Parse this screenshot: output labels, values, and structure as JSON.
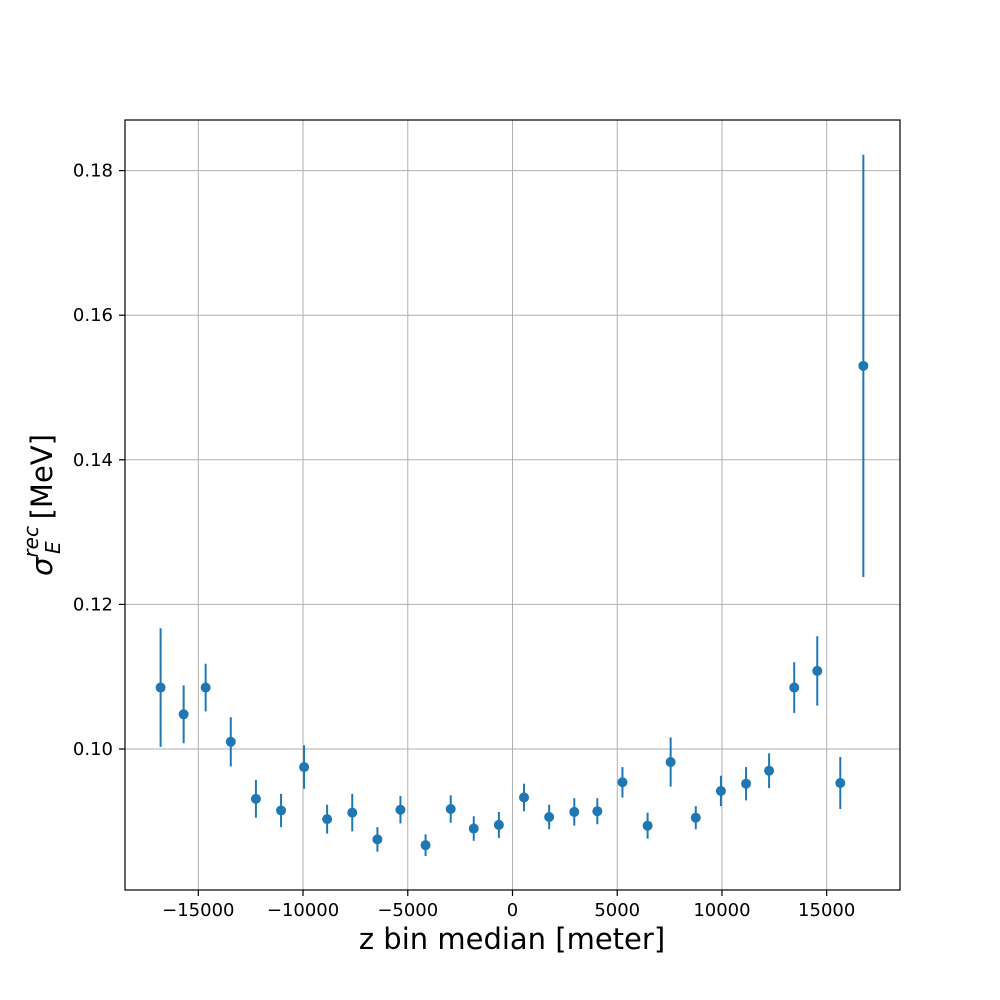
{
  "chart_data": {
    "type": "scatter",
    "title": "",
    "xlabel": "z bin median [meter]",
    "ylabel": {
      "symbol": "σ",
      "subscript": "E",
      "superscript": "rec",
      "unit": "[MeV]"
    },
    "xlim": [
      -18500,
      18500
    ],
    "ylim": [
      0.0805,
      0.187
    ],
    "xticks": [
      -15000,
      -10000,
      -5000,
      0,
      5000,
      10000,
      15000
    ],
    "xtick_labels": [
      "−15000",
      "−10000",
      "−5000",
      "0",
      "5000",
      "10000",
      "15000"
    ],
    "yticks": [
      0.1,
      0.12,
      0.14,
      0.16,
      0.18
    ],
    "ytick_labels": [
      "0.10",
      "0.12",
      "0.14",
      "0.16",
      "0.18"
    ],
    "grid": true,
    "series": [
      {
        "color": "#1f77b4",
        "marker": "circle",
        "points": [
          {
            "x": -16800,
            "y": 0.1085,
            "err": 0.0082
          },
          {
            "x": -15700,
            "y": 0.1048,
            "err": 0.004
          },
          {
            "x": -14650,
            "y": 0.1085,
            "err": 0.0033
          },
          {
            "x": -13450,
            "y": 0.101,
            "err": 0.0034
          },
          {
            "x": -12250,
            "y": 0.0931,
            "err": 0.0026
          },
          {
            "x": -11050,
            "y": 0.0915,
            "err": 0.0023
          },
          {
            "x": -9950,
            "y": 0.0975,
            "err": 0.003
          },
          {
            "x": -8850,
            "y": 0.0903,
            "err": 0.002
          },
          {
            "x": -7650,
            "y": 0.0912,
            "err": 0.0026
          },
          {
            "x": -6450,
            "y": 0.0875,
            "err": 0.0017
          },
          {
            "x": -5350,
            "y": 0.0916,
            "err": 0.0019
          },
          {
            "x": -4150,
            "y": 0.0867,
            "err": 0.0015
          },
          {
            "x": -2950,
            "y": 0.0917,
            "err": 0.0019
          },
          {
            "x": -1850,
            "y": 0.089,
            "err": 0.0017
          },
          {
            "x": -650,
            "y": 0.0895,
            "err": 0.0018
          },
          {
            "x": 550,
            "y": 0.0933,
            "err": 0.0019
          },
          {
            "x": 1750,
            "y": 0.0906,
            "err": 0.0017
          },
          {
            "x": 2950,
            "y": 0.0913,
            "err": 0.0019
          },
          {
            "x": 4050,
            "y": 0.0914,
            "err": 0.0018
          },
          {
            "x": 5250,
            "y": 0.0954,
            "err": 0.0021
          },
          {
            "x": 6450,
            "y": 0.0894,
            "err": 0.0018
          },
          {
            "x": 7550,
            "y": 0.0982,
            "err": 0.0034
          },
          {
            "x": 8750,
            "y": 0.0905,
            "err": 0.0016
          },
          {
            "x": 9950,
            "y": 0.0942,
            "err": 0.0021
          },
          {
            "x": 11150,
            "y": 0.0952,
            "err": 0.0023
          },
          {
            "x": 12250,
            "y": 0.097,
            "err": 0.0024
          },
          {
            "x": 13450,
            "y": 0.1085,
            "err": 0.0035
          },
          {
            "x": 14550,
            "y": 0.1108,
            "err": 0.0048
          },
          {
            "x": 15650,
            "y": 0.0953,
            "err": 0.0036
          },
          {
            "x": 16750,
            "y": 0.153,
            "err": 0.0292
          }
        ]
      }
    ]
  }
}
